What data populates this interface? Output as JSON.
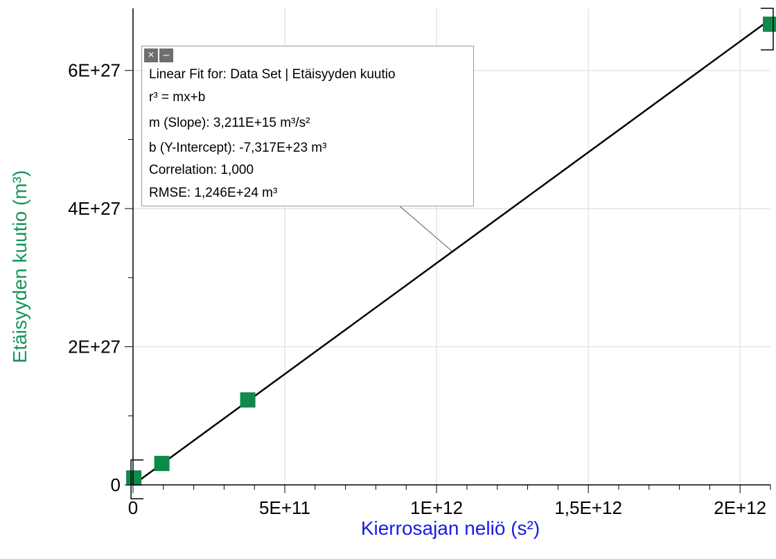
{
  "chart_data": {
    "type": "scatter",
    "xlabel": "Kierrosajan neliö (s²)",
    "ylabel": "Etäisyyden kuutio (m³)",
    "xlim": [
      0,
      2100000000000.0
    ],
    "ylim": [
      0,
      6.9e+27
    ],
    "x_ticks": [
      0,
      500000000000.0,
      1000000000000.0,
      1500000000000.0,
      2000000000000.0
    ],
    "x_tick_labels": [
      "0",
      "5E+11",
      "1E+12",
      "1,5E+12",
      "2E+12"
    ],
    "x_minor_step": 100000000000.0,
    "y_ticks": [
      0,
      2e+27,
      4e+27,
      6e+27
    ],
    "y_tick_labels": [
      "0",
      "2E+27",
      "4E+27",
      "6E+27"
    ],
    "y_minor_step": 1e+27,
    "grid": true,
    "points": [
      {
        "x": 2500000000.0,
        "y": 1e+26
      },
      {
        "x": 95000000000.0,
        "y": 3.1e+26
      },
      {
        "x": 378000000000.0,
        "y": 1.23e+27
      },
      {
        "x": 2100000000000.0,
        "y": 6.67e+27
      }
    ],
    "fit_line": {
      "slope": 3211000000000000.0,
      "intercept": -7.317e+23
    },
    "fit_box": {
      "title": "Linear Fit for: Data Set | Etäisyyden kuutio",
      "equation": "r³ = mx+b",
      "slope": "m (Slope): 3,211E+15 m³/s²",
      "intercept": "b (Y-Intercept): -7,317E+23 m³",
      "correlation": "Correlation: 1,000",
      "rmse": "RMSE: 1,246E+24 m³"
    },
    "colors": {
      "point": "#0f8a4a",
      "fit_line": "#000000",
      "x_axis_title": "#1a1ae6",
      "y_axis_title": "#16945a",
      "grid": "#d8d8d8"
    }
  }
}
